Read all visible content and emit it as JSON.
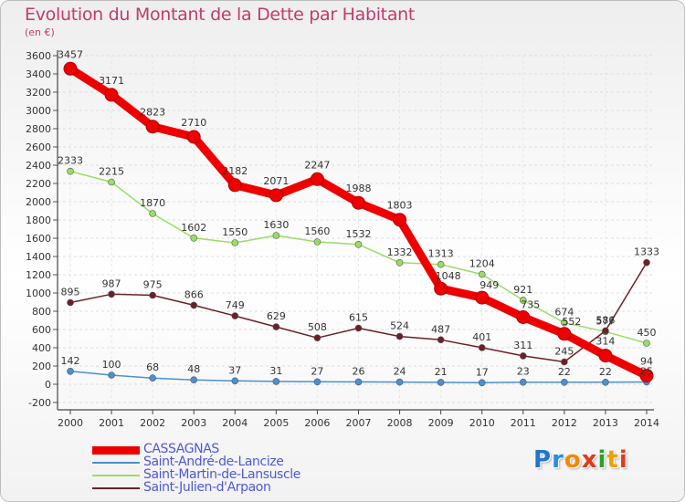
{
  "title": "Evolution du Montant de la Dette par Habitant",
  "unit": "(en €)",
  "logo": {
    "text": "Proxiti",
    "letters": [
      "P",
      "r",
      "o",
      "x",
      "i",
      "t",
      "i"
    ],
    "colors": [
      "#1f77c8",
      "#2a8de0",
      "#f08a00",
      "#e03a1a",
      "#2aa02a",
      "#f0a000",
      "#e03a1a"
    ]
  },
  "chart_data": {
    "type": "line",
    "x": [
      "2000",
      "2001",
      "2002",
      "2003",
      "2004",
      "2005",
      "2006",
      "2007",
      "2008",
      "2009",
      "2010",
      "2011",
      "2012",
      "2013",
      "2014"
    ],
    "ylim": [
      -200,
      3600
    ],
    "yticks": [
      "-200",
      "0",
      "200",
      "400",
      "600",
      "800",
      "1000",
      "1200",
      "1400",
      "1600",
      "1800",
      "2000",
      "2200",
      "2400",
      "2600",
      "2800",
      "3000",
      "3200",
      "3400",
      "3600"
    ],
    "grid": true,
    "legend_position": "bottom-left",
    "series": [
      {
        "name": "Saint-André-de-Lancize",
        "color": "#4a90d0",
        "width": 1.5,
        "marker": 3.5,
        "values": [
          142,
          100,
          68,
          48,
          37,
          31,
          27,
          26,
          24,
          21,
          17,
          23,
          22,
          22,
          25
        ],
        "labels": [
          "142",
          "100",
          "68",
          "48",
          "37",
          "31",
          "27",
          "26",
          "24",
          "21",
          "17",
          "23",
          "22",
          "22",
          "25"
        ]
      },
      {
        "name": "Saint-Martin-de-Lansuscle",
        "color": "#99dd66",
        "width": 1.5,
        "marker": 3.5,
        "values": [
          2333,
          2215,
          1870,
          1602,
          1550,
          1630,
          1560,
          1532,
          1332,
          1313,
          1204,
          921,
          674,
          577,
          450
        ],
        "labels": [
          "2333",
          "2215",
          "1870",
          "1602",
          "1550",
          "1630",
          "1560",
          "1532",
          "1332",
          "1313",
          "1204",
          "921",
          "674",
          "577",
          "450"
        ]
      },
      {
        "name": "Saint-Julien-d'Arpaon",
        "color": "#6b2027",
        "width": 1.5,
        "marker": 3.5,
        "values": [
          895,
          987,
          975,
          866,
          749,
          629,
          508,
          615,
          524,
          487,
          401,
          311,
          245,
          586,
          1333
        ],
        "labels": [
          "895",
          "987",
          "975",
          "866",
          "749",
          "629",
          "508",
          "615",
          "524",
          "487",
          "401",
          "311",
          "245",
          "586",
          "1333"
        ]
      },
      {
        "name": "CASSAGNAS",
        "color": "#ee0000",
        "width": 9,
        "marker": 7,
        "values": [
          3457,
          3171,
          2823,
          2710,
          2182,
          2071,
          2247,
          1988,
          1803,
          1048,
          949,
          735,
          552,
          314,
          94
        ],
        "labels": [
          "3457",
          "3171",
          "2823",
          "2710",
          "2182",
          "2071",
          "2247",
          "1988",
          "1803",
          "1048",
          "949",
          "735",
          "552",
          "314",
          "94"
        ]
      }
    ],
    "legend": [
      {
        "name": "CASSAGNAS",
        "color": "#ee0000",
        "width": 9
      },
      {
        "name": "Saint-André-de-Lancize",
        "color": "#4a90d0",
        "width": 1.5
      },
      {
        "name": "Saint-Martin-de-Lansuscle",
        "color": "#99dd66",
        "width": 1.5
      },
      {
        "name": "Saint-Julien-d'Arpaon",
        "color": "#6b2027",
        "width": 1.5
      }
    ]
  }
}
